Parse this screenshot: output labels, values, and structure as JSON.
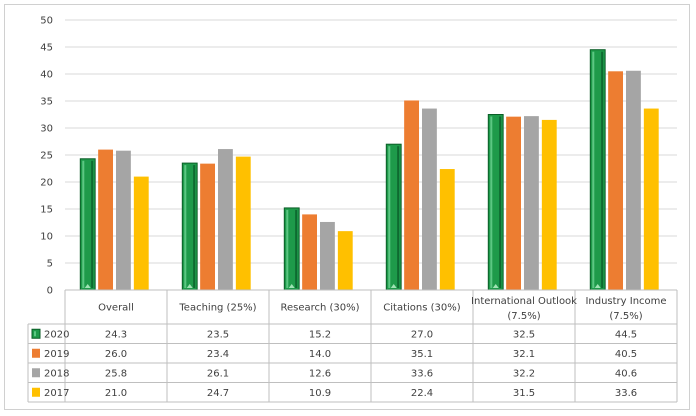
{
  "chart_data": {
    "type": "bar",
    "categories": [
      [
        "Overall"
      ],
      [
        "Teaching (25%)"
      ],
      [
        "Research (30%)"
      ],
      [
        "Citations (30%)"
      ],
      [
        "International Outlook",
        "(7.5%)"
      ],
      [
        "Industry Income",
        "(7.5%)"
      ]
    ],
    "series": [
      {
        "name": "2020",
        "color": "#1e9a4a",
        "values": [
          24.3,
          23.5,
          15.2,
          27.0,
          32.5,
          44.5
        ],
        "labels": [
          "24.3",
          "23.5",
          "15.2",
          "27.0",
          "32.5",
          "44.5"
        ]
      },
      {
        "name": "2019",
        "color": "#ed7d31",
        "values": [
          26.0,
          23.4,
          14.0,
          35.1,
          32.1,
          40.5
        ],
        "labels": [
          "26.0",
          "23.4",
          "14.0",
          "35.1",
          "32.1",
          "40.5"
        ]
      },
      {
        "name": "2018",
        "color": "#a5a5a5",
        "values": [
          25.8,
          26.1,
          12.6,
          33.6,
          32.2,
          40.6
        ],
        "labels": [
          "25.8",
          "26.1",
          "12.6",
          "33.6",
          "32.2",
          "40.6"
        ]
      },
      {
        "name": "2017",
        "color": "#ffc000",
        "values": [
          21.0,
          24.7,
          10.9,
          22.4,
          31.5,
          33.6
        ],
        "labels": [
          "21.0",
          "24.7",
          "10.9",
          "22.4",
          "31.5",
          "33.6"
        ]
      }
    ],
    "ylim": [
      0,
      50
    ],
    "yticks": [
      "0",
      "5",
      "10",
      "15",
      "20",
      "25",
      "30",
      "35",
      "40",
      "45",
      "50"
    ],
    "grid": true,
    "legend": "data-table"
  }
}
